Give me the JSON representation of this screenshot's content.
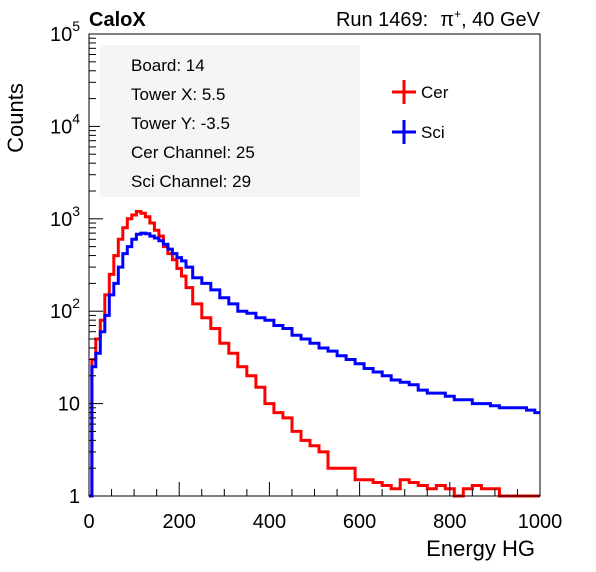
{
  "header": {
    "left": "CaloX",
    "right_prefix": "Run 1469:",
    "right_particle": "π",
    "right_charge": "+",
    "right_suffix": ", 40 GeV"
  },
  "info_box": [
    "Board: 14",
    "Tower X: 5.5",
    "Tower Y: -3.5",
    "Cer Channel: 25",
    "Sci Channel: 29"
  ],
  "chart_data": {
    "type": "line",
    "histogram": true,
    "xlabel": "Energy HG",
    "ylabel": "Counts",
    "xlim": [
      0,
      1000
    ],
    "ylim": [
      1,
      100000
    ],
    "y_scale": "log",
    "x_ticks": [
      0,
      200,
      400,
      600,
      800,
      1000
    ],
    "y_ticks": [
      1,
      10,
      100,
      1000,
      10000,
      100000
    ],
    "y_tick_labels": [
      {
        "base": "1",
        "exp": ""
      },
      {
        "base": "10",
        "exp": ""
      },
      {
        "base": "10",
        "exp": "2"
      },
      {
        "base": "10",
        "exp": "3"
      },
      {
        "base": "10",
        "exp": "4"
      },
      {
        "base": "10",
        "exp": "5"
      }
    ],
    "grid": false,
    "legend_position": "top-right",
    "colors": {
      "Cer": "#ff0000",
      "Sci": "#0000ff"
    },
    "series": [
      {
        "name": "Cer",
        "color": "#ff0000",
        "x": [
          3,
          10,
          20,
          30,
          40,
          50,
          60,
          70,
          80,
          90,
          100,
          110,
          120,
          130,
          140,
          150,
          160,
          170,
          180,
          190,
          200,
          210,
          220,
          240,
          260,
          280,
          300,
          320,
          340,
          360,
          380,
          400,
          420,
          440,
          460,
          480,
          500,
          520,
          540,
          560,
          580,
          600,
          620,
          640,
          660,
          680,
          700,
          720,
          740,
          760,
          780,
          800,
          820,
          840,
          860,
          880,
          900,
          920,
          940,
          960,
          980,
          997
        ],
        "y": [
          1,
          30,
          50,
          80,
          150,
          250,
          400,
          600,
          800,
          1000,
          1100,
          1200,
          1150,
          1050,
          900,
          750,
          650,
          500,
          420,
          360,
          290,
          240,
          180,
          120,
          85,
          65,
          45,
          35,
          25,
          20,
          15,
          10,
          8,
          7,
          5,
          4,
          3.5,
          3,
          2,
          2,
          2,
          1.5,
          1.5,
          1.4,
          1.3,
          1.2,
          1.5,
          1.4,
          1.3,
          1.2,
          1.3,
          1.2,
          1,
          1.2,
          1.3,
          1.2,
          1.2,
          1,
          1,
          1,
          1,
          1
        ]
      },
      {
        "name": "Sci",
        "color": "#0000ff",
        "x": [
          3,
          10,
          20,
          30,
          40,
          50,
          60,
          70,
          80,
          90,
          100,
          110,
          120,
          130,
          140,
          150,
          160,
          170,
          180,
          190,
          200,
          210,
          220,
          240,
          260,
          280,
          300,
          320,
          340,
          360,
          380,
          400,
          420,
          440,
          460,
          480,
          500,
          520,
          540,
          560,
          580,
          600,
          620,
          640,
          660,
          680,
          700,
          720,
          740,
          760,
          780,
          800,
          820,
          840,
          860,
          880,
          900,
          920,
          940,
          960,
          980,
          997
        ],
        "y": [
          1,
          25,
          35,
          60,
          90,
          150,
          200,
          300,
          420,
          500,
          600,
          680,
          700,
          690,
          650,
          620,
          580,
          530,
          470,
          420,
          380,
          350,
          300,
          230,
          200,
          170,
          140,
          120,
          100,
          95,
          85,
          80,
          70,
          65,
          55,
          50,
          45,
          40,
          37,
          33,
          30,
          27,
          24,
          22,
          20,
          18,
          17,
          16,
          14,
          13,
          13,
          12,
          11,
          11,
          10,
          10,
          9.5,
          9,
          9,
          9,
          8.5,
          8
        ]
      }
    ]
  }
}
